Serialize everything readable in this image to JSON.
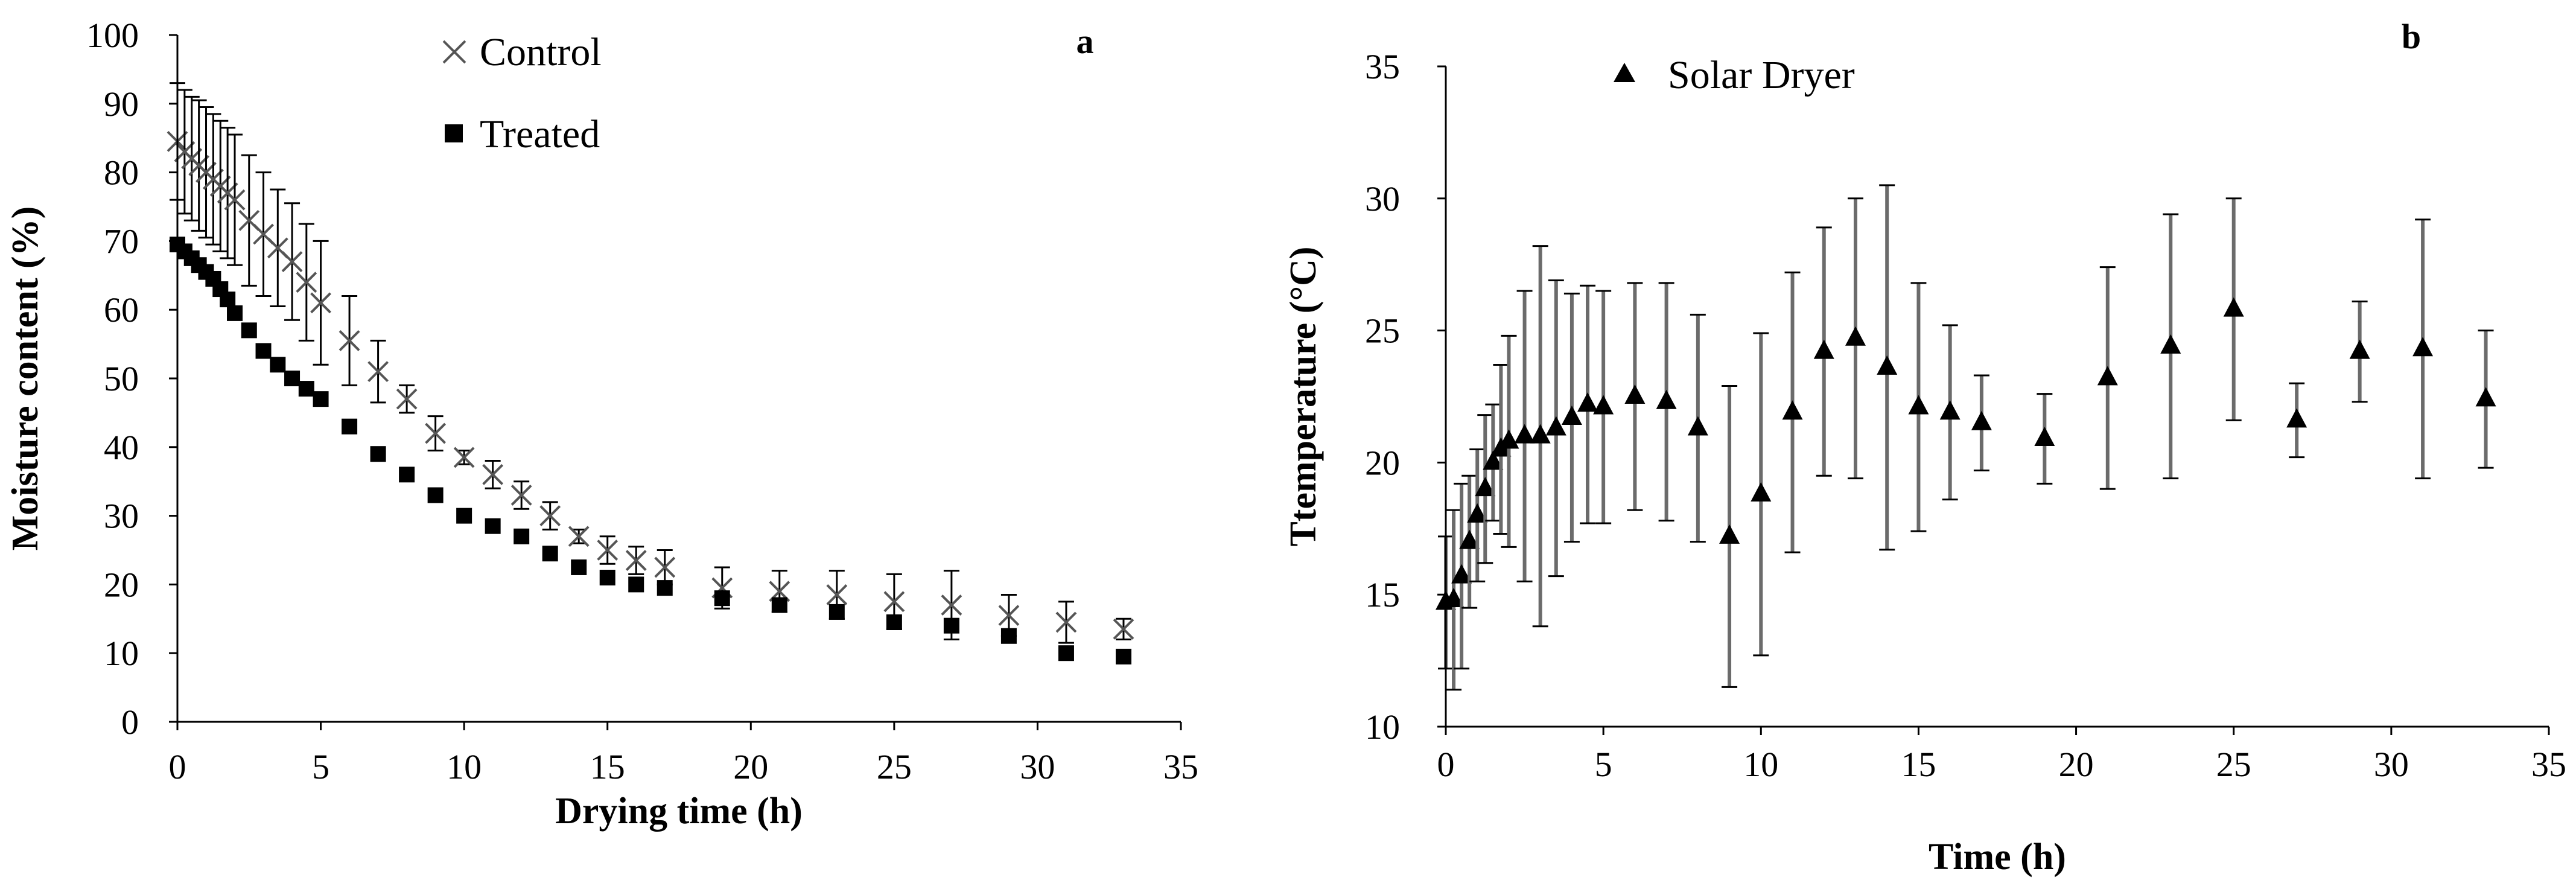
{
  "chart_data": [
    {
      "panel_label": "a",
      "type": "scatter",
      "xlabel": "Drying time (h)",
      "ylabel": "Moisture content (%)",
      "xlim": [
        0,
        35
      ],
      "ylim": [
        0,
        100
      ],
      "xticks": [
        "0",
        "5",
        "10",
        "15",
        "20",
        "25",
        "30",
        "35"
      ],
      "yticks": [
        "0",
        "10",
        "20",
        "30",
        "40",
        "50",
        "60",
        "70",
        "80",
        "90",
        "100"
      ],
      "grid": false,
      "legend_position": "top-center",
      "series": [
        {
          "name": "Control",
          "marker": "x",
          "x": [
            0,
            0.25,
            0.5,
            0.75,
            1,
            1.25,
            1.5,
            1.75,
            2,
            2.5,
            3,
            3.5,
            4,
            4.5,
            5,
            6,
            7,
            8,
            9,
            10,
            11,
            12,
            13,
            14,
            15,
            16,
            17,
            19,
            21,
            23,
            25,
            27,
            29,
            31,
            33
          ],
          "y": [
            84.5,
            83,
            82,
            81,
            80,
            79,
            78,
            77,
            76,
            73,
            71,
            69,
            67,
            64,
            61,
            55.5,
            51,
            47,
            42,
            38.5,
            36,
            33,
            30,
            27,
            25,
            23.5,
            22.5,
            19.5,
            19,
            18.5,
            17.5,
            17,
            15.5,
            14.5,
            13.5
          ],
          "error": [
            8.5,
            9,
            9,
            9.5,
            9.5,
            9.5,
            9.5,
            9.5,
            9.5,
            9.5,
            9,
            8.5,
            8.5,
            8.5,
            9,
            6.5,
            4.5,
            2,
            2.5,
            1,
            2,
            2,
            2,
            1,
            2,
            2,
            2.5,
            3,
            3,
            3.5,
            4,
            5,
            3,
            3,
            1.5
          ]
        },
        {
          "name": "Treated",
          "marker": "square",
          "x": [
            0,
            0.25,
            0.5,
            0.75,
            1,
            1.25,
            1.5,
            1.75,
            2,
            2.5,
            3,
            3.5,
            4,
            4.5,
            5,
            6,
            7,
            8,
            9,
            10,
            11,
            12,
            13,
            14,
            15,
            16,
            17,
            19,
            21,
            23,
            25,
            27,
            29,
            31,
            33
          ],
          "y": [
            69.5,
            68.5,
            67.5,
            66.5,
            65.5,
            64.5,
            63,
            61.5,
            59.5,
            57,
            54,
            52,
            50,
            48.5,
            47,
            43,
            39,
            36,
            33,
            30,
            28.5,
            27,
            24.5,
            22.5,
            21,
            20,
            19.5,
            18,
            17,
            16,
            14.5,
            14,
            12.5,
            10,
            9.5
          ]
        }
      ],
      "legend": [
        "Control",
        "Treated"
      ]
    },
    {
      "panel_label": "b",
      "type": "scatter",
      "xlabel": "Time (h)",
      "ylabel": "Ttemperature (°C)",
      "xlim": [
        0,
        35
      ],
      "ylim": [
        10,
        35
      ],
      "xticks": [
        "0",
        "5",
        "10",
        "15",
        "20",
        "25",
        "30",
        "35"
      ],
      "yticks": [
        "10",
        "15",
        "20",
        "25",
        "30",
        "35"
      ],
      "grid": false,
      "legend_position": "top-left",
      "series": [
        {
          "name": "Solar Dryer",
          "marker": "triangle",
          "x": [
            0,
            0.25,
            0.5,
            0.75,
            1,
            1.25,
            1.5,
            1.75,
            2,
            2.5,
            3,
            3.5,
            4,
            4.5,
            5,
            6,
            7,
            8,
            9,
            10,
            11,
            12,
            13,
            14,
            15,
            16,
            17,
            19,
            21,
            23,
            25,
            27,
            29,
            31,
            33
          ],
          "y": [
            14.7,
            14.8,
            15.7,
            17,
            18,
            19,
            20,
            20.5,
            20.8,
            21,
            21,
            21.3,
            21.7,
            22.2,
            22.1,
            22.5,
            22.3,
            21.3,
            17.2,
            18.8,
            21.9,
            24.2,
            24.7,
            23.6,
            22.1,
            21.9,
            21.5,
            20.9,
            23.2,
            24.4,
            25.8,
            21.6,
            24.2,
            24.3,
            22.4
          ],
          "error": [
            2.5,
            3.4,
            3.5,
            2.5,
            2.5,
            2.8,
            2.2,
            3.2,
            4,
            5.5,
            7.2,
            5.6,
            4.7,
            4.5,
            4.4,
            4.3,
            4.5,
            4.3,
            5.7,
            6.1,
            5.3,
            4.7,
            5.3,
            6.9,
            4.7,
            3.3,
            1.8,
            1.7,
            4.2,
            5,
            4.2,
            1.4,
            1.9,
            4.9,
            2.6
          ]
        }
      ],
      "legend": [
        "Solar Dryer"
      ]
    }
  ]
}
